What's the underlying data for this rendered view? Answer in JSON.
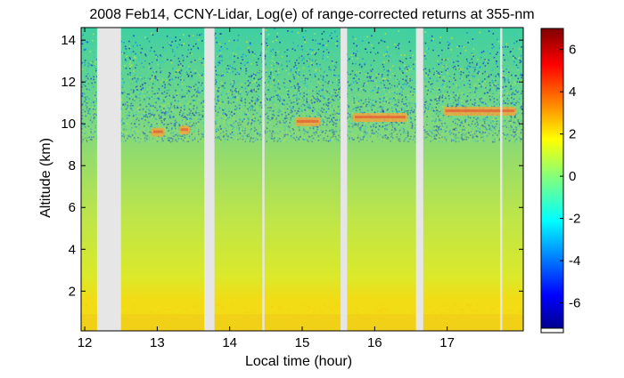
{
  "chart_data": {
    "type": "heatmap",
    "title": "2008 Feb14, CCNY-Lidar, Log(e) of range-corrected returns at 355-nm",
    "xlabel": "Local time (hour)",
    "ylabel": "Altitude (km)",
    "xlim": [
      11.95,
      18.05
    ],
    "ylim": [
      0.1,
      14.6
    ],
    "xticks": [
      12,
      13,
      14,
      15,
      16,
      17
    ],
    "yticks": [
      2,
      4,
      6,
      8,
      10,
      12,
      14
    ],
    "colorbar": {
      "range": [
        -7.2,
        7
      ],
      "ticks": [
        6,
        4,
        2,
        0,
        -2,
        -4,
        -6
      ],
      "colormap": "jet"
    },
    "data_gaps_hours": [
      [
        12.17,
        12.5
      ],
      [
        13.65,
        13.79
      ],
      [
        14.45,
        14.48
      ],
      [
        15.53,
        15.62
      ],
      [
        16.57,
        16.67
      ],
      [
        17.73,
        17.76
      ]
    ],
    "colors": {
      "gap": "#e6e6e6",
      "near_surface": "#f2dc15",
      "lower_air": "#dbe92a",
      "mid_air": "#96dc6a",
      "upper_noise": "#3fcfa2",
      "cloud": "#f7a43a"
    },
    "features": {
      "boundary_layer_top_km": 1.5,
      "noise_onset_km": 9.5,
      "clouds": [
        {
          "t_start": 12.92,
          "t_end": 13.1,
          "alt_km": 9.6
        },
        {
          "t_start": 13.3,
          "t_end": 13.45,
          "alt_km": 9.7
        },
        {
          "t_start": 14.9,
          "t_end": 15.25,
          "alt_km": 10.1
        },
        {
          "t_start": 15.7,
          "t_end": 16.45,
          "alt_km": 10.3
        },
        {
          "t_start": 16.95,
          "t_end": 17.95,
          "alt_km": 10.6
        }
      ]
    }
  }
}
